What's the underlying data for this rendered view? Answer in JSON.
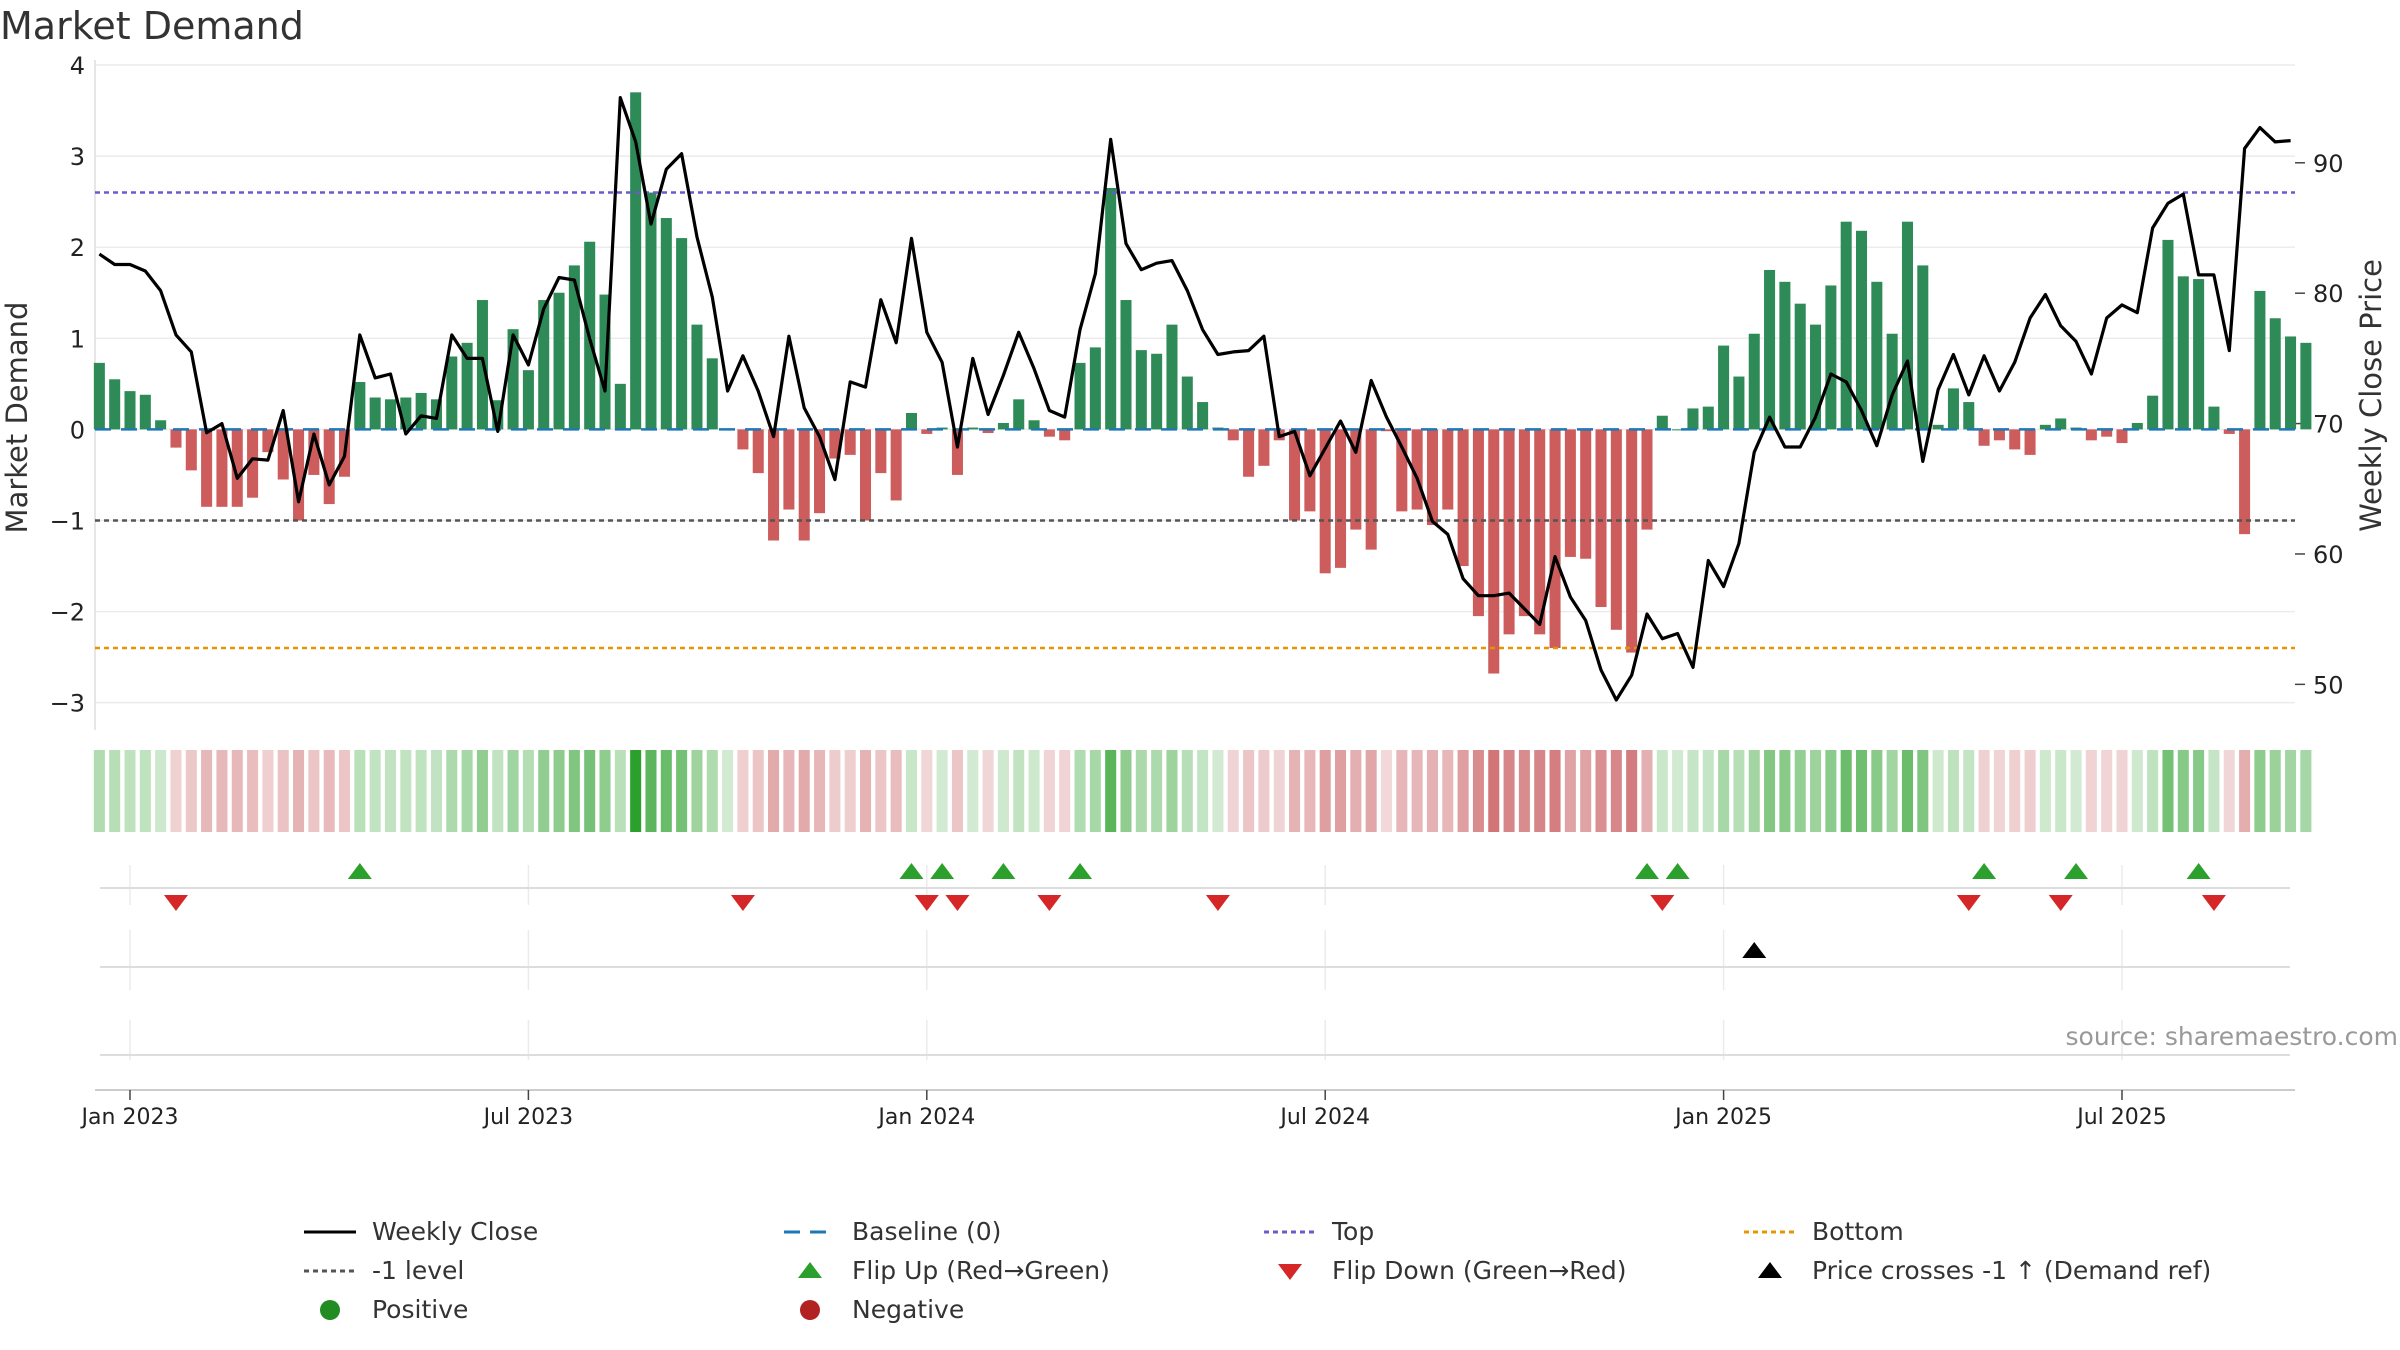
{
  "title": "Market Demand",
  "source": "source: sharemaestro.com",
  "colors": {
    "pos": "#2e8b57",
    "neg": "#cd5c5c",
    "close": "#000000",
    "baseline": "#1f77b4",
    "top": "#6a5acd",
    "level": "#555555",
    "bottom": "#e69500",
    "flip_up": "#2ca02c",
    "flip_down": "#d62728",
    "cross": "#000000"
  },
  "chart_data": {
    "type": "bar",
    "title": "Market Demand",
    "ylabel": "Market Demand",
    "y2label": "Weekly Close Price",
    "ylim": [
      -3.3,
      4.0
    ],
    "y2lim": [
      46.5,
      97.5
    ],
    "yticks": [
      {
        "v": 4,
        "label": "4"
      },
      {
        "v": 3,
        "label": "3"
      },
      {
        "v": 2,
        "label": "2"
      },
      {
        "v": 1,
        "label": "1"
      },
      {
        "v": 0,
        "label": "0"
      },
      {
        "v": -1,
        "label": "−1"
      },
      {
        "v": -2,
        "label": "−2"
      },
      {
        "v": -3,
        "label": "−3"
      }
    ],
    "y2ticks": [
      {
        "v": 90,
        "label": "90"
      },
      {
        "v": 80,
        "label": "80"
      },
      {
        "v": 70,
        "label": "70"
      },
      {
        "v": 60,
        "label": "60"
      },
      {
        "v": 50,
        "label": "50"
      }
    ],
    "start_date": "2022-12-19",
    "xticks": [
      {
        "week": 2,
        "label": "Jan 2023"
      },
      {
        "week": 28,
        "label": "Jul 2023"
      },
      {
        "week": 54,
        "label": "Jan 2024"
      },
      {
        "week": 80,
        "label": "Jul 2024"
      },
      {
        "week": 106,
        "label": "Jan 2025"
      },
      {
        "week": 132,
        "label": "Jul 2025"
      }
    ],
    "levels": {
      "baseline": 0,
      "top": 2.6,
      "minus_one": -1,
      "bottom": -2.4
    },
    "demand": [
      0.73,
      0.55,
      0.42,
      0.38,
      0.1,
      -0.2,
      -0.45,
      -0.85,
      -0.85,
      -0.85,
      -0.75,
      -0.25,
      -0.55,
      -1.0,
      -0.5,
      -0.82,
      -0.52,
      0.52,
      0.35,
      0.33,
      0.35,
      0.4,
      0.33,
      0.8,
      0.95,
      1.42,
      0.32,
      1.1,
      0.65,
      1.42,
      1.5,
      1.8,
      2.06,
      1.48,
      0.5,
      3.7,
      2.6,
      2.32,
      2.1,
      1.15,
      0.78,
      0.0,
      -0.22,
      -0.48,
      -1.22,
      -0.88,
      -1.22,
      -0.92,
      -0.32,
      -0.28,
      -1.0,
      -0.48,
      -0.78,
      0.18,
      -0.05,
      0.02,
      -0.5,
      0.02,
      -0.04,
      0.07,
      0.33,
      0.1,
      -0.08,
      -0.12,
      0.73,
      0.9,
      2.65,
      1.42,
      0.87,
      0.83,
      1.15,
      0.58,
      0.3,
      0.02,
      -0.12,
      -0.52,
      -0.4,
      -0.12,
      -1.0,
      -0.9,
      -1.58,
      -1.52,
      -1.1,
      -1.32,
      -0.02,
      -0.9,
      -0.88,
      -1.05,
      -0.88,
      -1.5,
      -2.05,
      -2.68,
      -2.25,
      -2.05,
      -2.25,
      -2.4,
      -1.4,
      -1.42,
      -1.95,
      -2.2,
      -2.45,
      -1.1,
      0.15,
      0.0,
      0.23,
      0.25,
      0.92,
      0.58,
      1.05,
      1.75,
      1.62,
      1.38,
      1.15,
      1.58,
      2.28,
      2.18,
      1.62,
      1.05,
      2.28,
      1.8,
      0.05,
      0.45,
      0.3,
      -0.18,
      -0.12,
      -0.22,
      -0.28,
      0.05,
      0.12,
      0.02,
      -0.12,
      -0.08,
      -0.15,
      0.07,
      0.37,
      2.08,
      1.68,
      1.65,
      0.25,
      -0.05,
      -1.15,
      1.52,
      1.22,
      1.02,
      0.95
    ],
    "close": [
      83,
      82.2,
      82.2,
      81.7,
      80.2,
      76.8,
      75.5,
      69.3,
      70,
      65.8,
      67.3,
      67.2,
      71,
      64,
      69.2,
      65.3,
      67.5,
      76.8,
      73.5,
      73.8,
      69.2,
      70.6,
      70.4,
      76.8,
      75,
      75,
      69.4,
      76.8,
      74.5,
      78.8,
      81.2,
      81,
      76.5,
      72.5,
      95,
      91.6,
      85.3,
      89.5,
      90.7,
      84.3,
      79.7,
      72.5,
      75.2,
      72.5,
      69,
      76.7,
      71.2,
      69,
      65.7,
      73.2,
      72.8,
      79.5,
      76.2,
      84.2,
      77,
      74.7,
      68.2,
      75,
      70.7,
      73.7,
      77,
      74.2,
      71,
      70.5,
      77.2,
      81.5,
      91.8,
      83.8,
      81.8,
      82.3,
      82.5,
      80.2,
      77.2,
      75.3,
      75.5,
      75.6,
      76.7,
      69,
      69.4,
      66,
      68.1,
      70.2,
      67.8,
      73.3,
      70.5,
      68.2,
      65.8,
      62.5,
      61.5,
      58.1,
      56.8,
      56.8,
      57,
      55.8,
      54.6,
      59.8,
      56.7,
      54.9,
      51.1,
      48.8,
      50.7,
      55.4,
      53.5,
      53.9,
      51.3,
      59.5,
      57.5,
      60.8,
      67.8,
      70.5,
      68.2,
      68.2,
      70.5,
      73.8,
      73.2,
      71,
      68.3,
      72.2,
      74.8,
      67.1,
      72.6,
      75.3,
      72.2,
      75.2,
      72.5,
      74.7,
      78.1,
      79.9,
      77.5,
      76.3,
      73.8,
      78.1,
      79.1,
      78.5,
      85,
      86.9,
      87.6,
      81.4,
      81.4,
      75.6,
      91.1,
      92.7,
      91.6,
      91.7
    ],
    "flip_up_weeks": [
      17,
      53,
      55,
      59,
      64,
      101,
      103,
      123,
      129,
      137
    ],
    "flip_down_weeks": [
      5,
      42,
      54,
      56,
      62,
      73,
      102,
      122,
      128,
      138
    ],
    "cross_weeks": [
      108
    ],
    "strip_values": "same as demand"
  },
  "legend": [
    [
      {
        "label": "Weekly Close",
        "sym": "close"
      },
      {
        "label": "Baseline (0)",
        "sym": "baseline"
      },
      {
        "label": "Top",
        "sym": "top"
      },
      {
        "label": "Bottom",
        "sym": "bottom"
      }
    ],
    [
      {
        "label": "-1 level",
        "sym": "level"
      },
      {
        "label": "Flip Up (Red→Green)",
        "sym": "flip_up"
      },
      {
        "label": "Flip Down (Green→Red)",
        "sym": "flip_down"
      },
      {
        "label": "Price crosses -1 ↑ (Demand ref)",
        "sym": "cross"
      }
    ],
    [
      {
        "label": "Positive",
        "sym": "pos_dot"
      },
      {
        "label": "Negative",
        "sym": "neg_dot"
      }
    ]
  ]
}
